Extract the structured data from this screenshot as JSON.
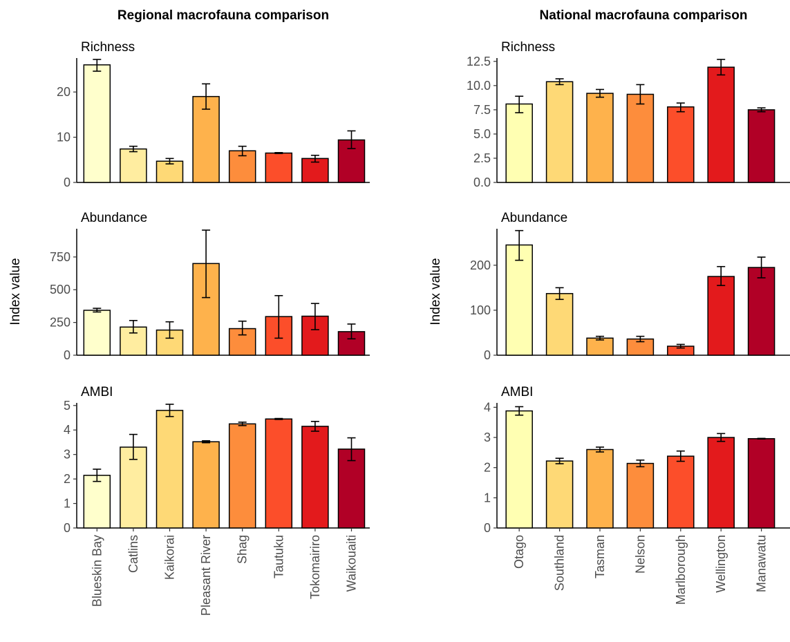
{
  "chart_data": [
    {
      "type": "bar",
      "title": "Regional macrofauna comparison",
      "ylabel": "Index value",
      "categories": [
        "Blueskin Bay",
        "Catlins",
        "Kaikorai",
        "Pleasant River",
        "Shag",
        "Tautuku",
        "Tokomairiro",
        "Waikouaiti"
      ],
      "colors": [
        "#ffffcc",
        "#ffeda0",
        "#fed976",
        "#feb24c",
        "#fd8d3c",
        "#fc4e2a",
        "#e31a1c",
        "#b10026"
      ],
      "panels": [
        {
          "name": "Richness",
          "ylim": [
            0,
            27.2
          ],
          "yticks": [
            0,
            10,
            20
          ],
          "values": [
            26.0,
            7.4,
            4.7,
            19.0,
            7.0,
            6.5,
            5.3,
            9.4
          ],
          "err_low": [
            24.6,
            6.8,
            4.1,
            16.2,
            5.9,
            6.4,
            4.5,
            7.5
          ],
          "err_high": [
            27.2,
            8.0,
            5.3,
            21.8,
            8.0,
            6.6,
            6.0,
            11.4
          ]
        },
        {
          "name": "Abundance",
          "ylim": [
            0,
            955
          ],
          "yticks": [
            0,
            250,
            500,
            750
          ],
          "values": [
            343,
            215,
            192,
            700,
            203,
            295,
            298,
            180
          ],
          "err_low": [
            330,
            170,
            130,
            440,
            155,
            130,
            195,
            125
          ],
          "err_high": [
            358,
            265,
            255,
            955,
            260,
            455,
            395,
            238
          ]
        },
        {
          "name": "AMBI",
          "ylim": [
            0,
            5.05
          ],
          "yticks": [
            0,
            1,
            2,
            3,
            4,
            5
          ],
          "values": [
            2.15,
            3.3,
            4.8,
            3.52,
            4.25,
            4.45,
            4.15,
            3.22
          ],
          "err_low": [
            1.9,
            2.8,
            4.55,
            3.48,
            4.18,
            4.43,
            3.95,
            2.75
          ],
          "err_high": [
            2.4,
            3.82,
            5.05,
            3.56,
            4.32,
            4.47,
            4.35,
            3.68
          ]
        }
      ]
    },
    {
      "type": "bar",
      "title": "National macrofauna comparison",
      "ylabel": "Index value",
      "categories": [
        "Otago",
        "Southland",
        "Tasman",
        "Nelson",
        "Marlborough",
        "Wellington",
        "Manawatu"
      ],
      "colors": [
        "#ffffb2",
        "#fed976",
        "#feb24c",
        "#fd8d3c",
        "#fc4e2a",
        "#e31a1c",
        "#b10026"
      ],
      "panels": [
        {
          "name": "Richness",
          "ylim": [
            0,
            12.7
          ],
          "yticks": [
            0,
            2.5,
            5,
            7.5,
            10,
            12.5
          ],
          "ytick_labels": [
            "0.0",
            "2.5",
            "5.0",
            "7.5",
            "10.0",
            "12.5"
          ],
          "values": [
            8.1,
            10.4,
            9.2,
            9.1,
            7.8,
            11.9,
            7.5
          ],
          "err_low": [
            7.2,
            10.1,
            8.8,
            8.1,
            7.3,
            11.1,
            7.3
          ],
          "err_high": [
            8.9,
            10.7,
            9.6,
            10.1,
            8.2,
            12.7,
            7.7
          ]
        },
        {
          "name": "Abundance",
          "ylim": [
            0,
            278
          ],
          "yticks": [
            0,
            100,
            200
          ],
          "values": [
            245,
            137,
            38,
            36,
            20,
            175,
            195
          ],
          "err_low": [
            211,
            124,
            34,
            30,
            16,
            155,
            172
          ],
          "err_high": [
            277,
            150,
            42,
            42,
            24,
            197,
            218
          ]
        },
        {
          "name": "AMBI",
          "ylim": [
            0,
            4.1
          ],
          "yticks": [
            0,
            1,
            2,
            3,
            4
          ],
          "values": [
            3.88,
            2.22,
            2.6,
            2.14,
            2.38,
            3.0,
            2.96
          ],
          "err_low": [
            3.74,
            2.13,
            2.52,
            2.03,
            2.21,
            2.87,
            2.95
          ],
          "err_high": [
            4.02,
            2.31,
            2.68,
            2.25,
            2.55,
            3.13,
            2.97
          ]
        }
      ]
    }
  ]
}
